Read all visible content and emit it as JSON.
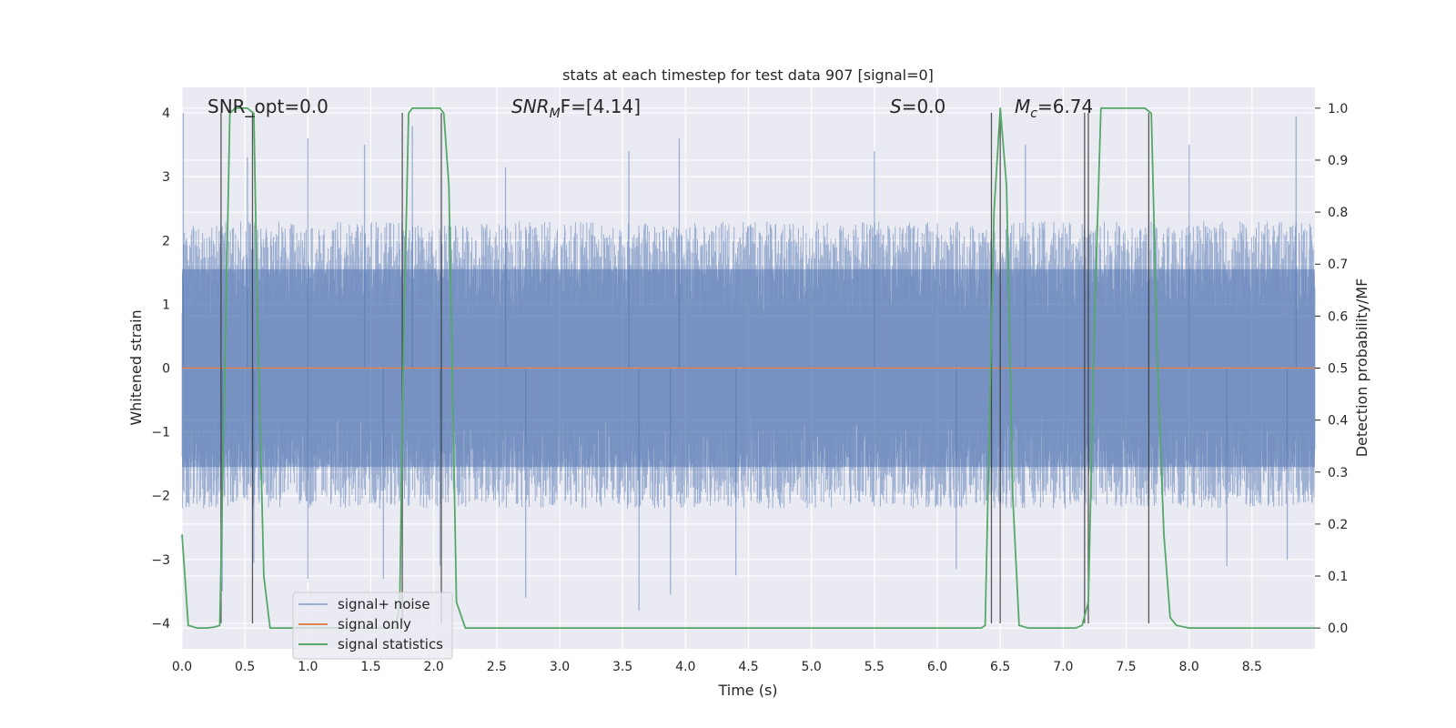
{
  "chart_data": {
    "type": "line",
    "title": "stats at each timestep for test data 907 [signal=0]",
    "xlabel": "Time (s)",
    "ylabel_left": "Whitened strain",
    "ylabel_right": "Detection probability/MF",
    "xlim": [
      0.0,
      9.0
    ],
    "ylim_left": [
      -4.4,
      4.4
    ],
    "ylim_right": [
      -0.04,
      1.04
    ],
    "grid": true,
    "x_ticks": [
      "0.0",
      "0.5",
      "1.0",
      "1.5",
      "2.0",
      "2.5",
      "3.0",
      "3.5",
      "4.0",
      "4.5",
      "5.0",
      "5.5",
      "6.0",
      "6.5",
      "7.0",
      "7.5",
      "8.0",
      "8.5"
    ],
    "y_left_ticks": [
      "4",
      "3",
      "2",
      "1",
      "0",
      "−1",
      "−2",
      "−3",
      "−4"
    ],
    "y_right_ticks": [
      "1.0",
      "0.9",
      "0.8",
      "0.7",
      "0.6",
      "0.5",
      "0.4",
      "0.3",
      "0.2",
      "0.1",
      "0.0"
    ],
    "annotations": {
      "snr_opt": "SNR_opt=0.0",
      "snr_mf_base": "SNR",
      "snr_mf_sub": "M",
      "snr_mf_rest": "F=[4.14]",
      "s_italic": "S",
      "s_rest": "=0.0",
      "mc_base": "M",
      "mc_sub": "c",
      "mc_rest": "=6.74"
    },
    "legend": {
      "placement": "lower-left",
      "entries": [
        "signal+ noise",
        "signal only",
        "signal statistics"
      ]
    },
    "series": [
      {
        "name": "signal+ noise",
        "color": "#4c72b0",
        "description_style": "dense noise band",
        "envelope_upper": 2.3,
        "envelope_lower": -2.2,
        "spikes": [
          {
            "x": 0.01,
            "y": 4.0
          },
          {
            "x": 0.52,
            "y": 3.3
          },
          {
            "x": 1.0,
            "y": 3.6
          },
          {
            "x": 1.45,
            "y": 3.5
          },
          {
            "x": 1.83,
            "y": 3.8
          },
          {
            "x": 2.57,
            "y": 3.15
          },
          {
            "x": 3.55,
            "y": 3.4
          },
          {
            "x": 3.95,
            "y": 3.6
          },
          {
            "x": 5.5,
            "y": 3.4
          },
          {
            "x": 6.7,
            "y": 3.5
          },
          {
            "x": 8.0,
            "y": 3.5
          },
          {
            "x": 8.85,
            "y": 3.95
          },
          {
            "x": 0.32,
            "y": -3.5
          },
          {
            "x": 0.57,
            "y": -3.05
          },
          {
            "x": 1.0,
            "y": -3.3
          },
          {
            "x": 1.6,
            "y": -3.3
          },
          {
            "x": 2.05,
            "y": -3.1
          },
          {
            "x": 2.73,
            "y": -3.6
          },
          {
            "x": 3.63,
            "y": -3.8
          },
          {
            "x": 3.88,
            "y": -3.55
          },
          {
            "x": 4.4,
            "y": -3.25
          },
          {
            "x": 6.15,
            "y": -3.15
          },
          {
            "x": 8.3,
            "y": -3.1
          },
          {
            "x": 8.78,
            "y": -3.0
          }
        ]
      },
      {
        "name": "signal only",
        "color": "#dd8452",
        "x": [
          0.0,
          9.0
        ],
        "y": [
          0.0,
          0.0
        ]
      },
      {
        "name": "signal statistics",
        "color": "#55a868",
        "axis": "right",
        "x": [
          0.0,
          0.05,
          0.12,
          0.2,
          0.26,
          0.3,
          0.38,
          0.42,
          0.46,
          0.52,
          0.57,
          0.6,
          0.65,
          0.7,
          0.8,
          1.0,
          1.7,
          1.73,
          1.76,
          1.8,
          1.83,
          1.9,
          2.0,
          2.05,
          2.08,
          2.12,
          2.18,
          2.25,
          6.35,
          6.38,
          6.45,
          6.5,
          6.55,
          6.6,
          6.65,
          6.72,
          6.8,
          7.1,
          7.15,
          7.2,
          7.25,
          7.3,
          7.5,
          7.65,
          7.7,
          7.75,
          7.8,
          7.85,
          7.9,
          8.0,
          9.0
        ],
        "y": [
          0.18,
          0.005,
          0.0,
          0.0,
          0.002,
          0.005,
          0.99,
          1.0,
          1.0,
          1.0,
          0.99,
          0.6,
          0.1,
          0.0,
          0.0,
          0.0,
          0.0,
          0.05,
          0.55,
          0.99,
          1.0,
          1.0,
          1.0,
          1.0,
          0.99,
          0.85,
          0.05,
          0.0,
          0.0,
          0.005,
          0.8,
          1.0,
          0.85,
          0.25,
          0.005,
          0.0,
          0.0,
          0.0,
          0.005,
          0.05,
          0.6,
          1.0,
          1.0,
          1.0,
          0.99,
          0.5,
          0.18,
          0.02,
          0.005,
          0.0,
          0.0
        ]
      }
    ],
    "vertical_markers": [
      0.31,
      0.56,
      1.75,
      2.06,
      6.43,
      6.5,
      7.17,
      7.2,
      7.68
    ]
  }
}
